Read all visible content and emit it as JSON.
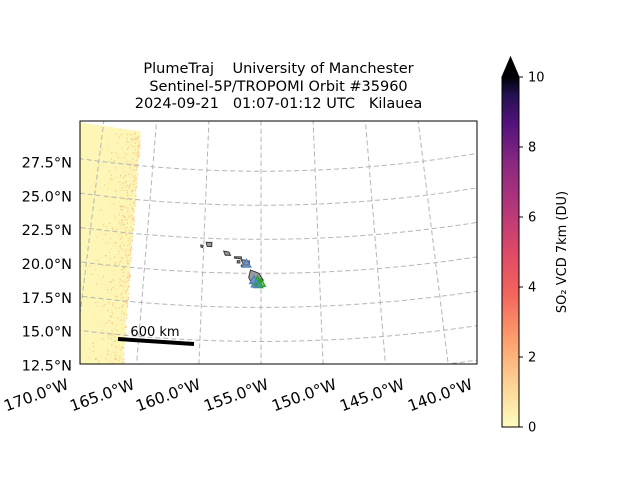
{
  "header": {
    "title_line1": "PlumeTraj    University of Manchester",
    "title_line2": "Sentinel-5P/TROPOMI Orbit #35960",
    "title_line3": "2024-09-21   01:07-01:12 UTC   Kilauea"
  },
  "scale_bar": {
    "label": "600 km"
  },
  "colors": {
    "grid": "#b5b5b5",
    "swath": "#fdf6b6",
    "swath_speckle": "#f7b57a",
    "island_fill": "#9a9a9a",
    "marker_blue": "#4a86c8",
    "marker_green": "#2ca02c"
  },
  "chart_data": {
    "type": "map",
    "projection": "conic (curved graticule)",
    "xlabel": "",
    "ylabel": "",
    "lon_ticks": [
      -170,
      -165,
      -160,
      -155,
      -150,
      -145,
      -140
    ],
    "lon_tick_labels": [
      "170.0°W",
      "165.0°W",
      "160.0°W",
      "155.0°W",
      "150.0°W",
      "145.0°W",
      "140.0°W"
    ],
    "lat_ticks": [
      12.5,
      15.0,
      17.5,
      20.0,
      22.5,
      25.0,
      27.5
    ],
    "lat_tick_labels": [
      "12.5°N",
      "15.0°N",
      "17.5°N",
      "20.0°N",
      "22.5°N",
      "25.0°N",
      "27.5°N"
    ],
    "grid": true,
    "layers": [
      {
        "kind": "so2_swath",
        "lon_edge_approx": [
          -166.5,
          -164.0
        ],
        "values_DU_range": [
          0,
          0.6
        ]
      },
      {
        "kind": "coastline",
        "region": "Hawaiian Islands"
      },
      {
        "kind": "markers",
        "shape": "triangle",
        "color": "blue",
        "label": ""
      },
      {
        "kind": "markers",
        "shape": "triangle",
        "color": "green",
        "label": "Kilauea"
      }
    ],
    "colorbar": {
      "label": "SO₂ VCD 7km (DU)",
      "colormap": "magma_r",
      "min": 0,
      "max": 10,
      "extend": "max",
      "ticks": [
        0,
        2,
        4,
        6,
        8,
        10
      ],
      "tick_labels": [
        "0",
        "2",
        "4",
        "6",
        "8",
        "10"
      ]
    }
  }
}
